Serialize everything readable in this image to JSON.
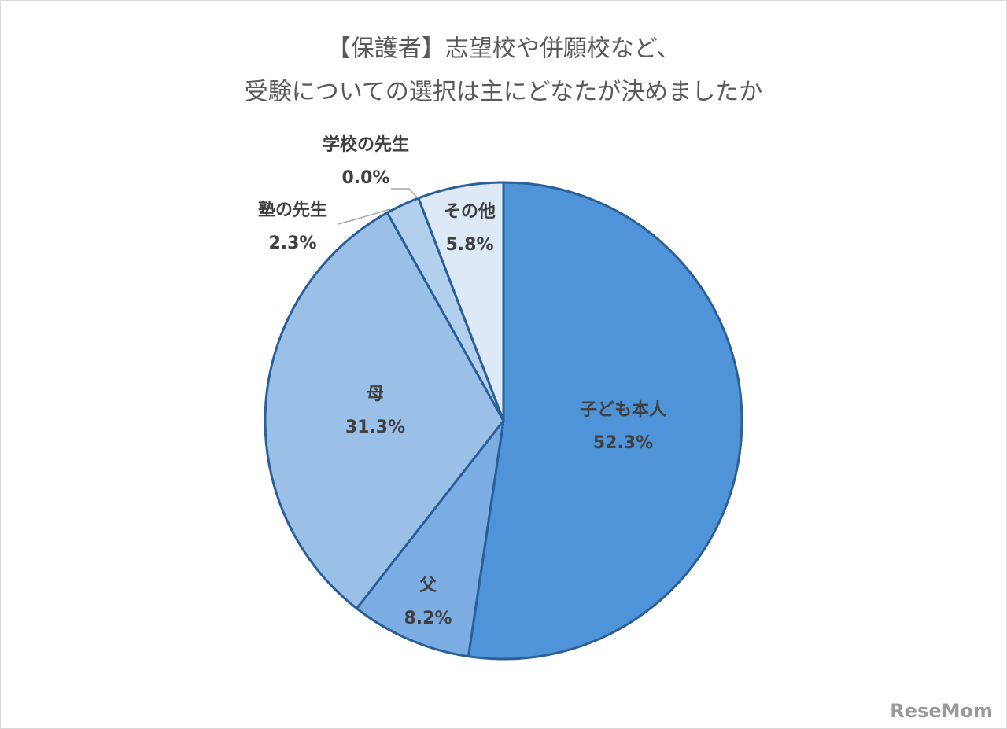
{
  "chart_data": {
    "type": "pie",
    "title": [
      "【保護者】志望校や併願校など、",
      "受験についての選択は主にどなたが決めましたか"
    ],
    "categories": [
      "子ども本人",
      "父",
      "母",
      "塾の先生",
      "学校の先生",
      "その他"
    ],
    "values": [
      52.3,
      8.2,
      31.3,
      2.3,
      0.0,
      5.8
    ],
    "value_labels": [
      "52.3%",
      "8.2%",
      "31.3%",
      "2.3%",
      "0.0%",
      "5.8%"
    ],
    "colors": [
      "#4f94d8",
      "#7badE3",
      "#9bc0e8",
      "#b3cfee",
      "#c8dcf2",
      "#dde9f6"
    ]
  },
  "watermark": "ReseMom"
}
